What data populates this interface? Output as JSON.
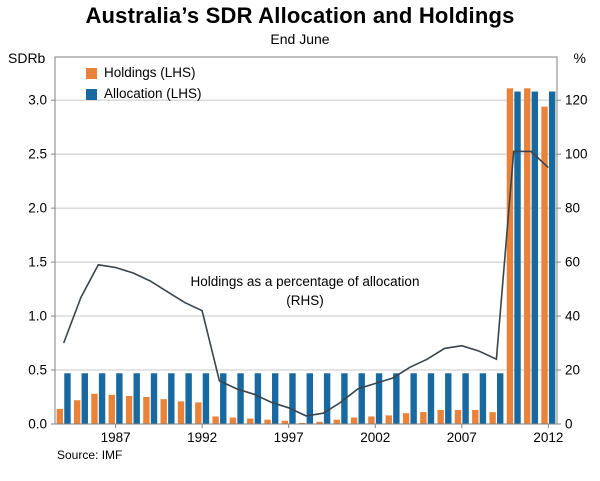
{
  "title": "Australia’s SDR Allocation and Holdings",
  "subtitle": "End June",
  "axes": {
    "left_unit": "SDRb",
    "right_unit": "%"
  },
  "legend": [
    {
      "label": "Holdings (LHS)",
      "color": "#EA8339"
    },
    {
      "label": "Allocation (LHS)",
      "color": "#17699F"
    }
  ],
  "annotation": {
    "line1": "Holdings as a percentage of allocation",
    "line2": "(RHS)"
  },
  "source": "Source: IMF",
  "chart_data": {
    "type": "bar+line",
    "title": "Australia’s SDR Allocation and Holdings",
    "subtitle": "End June",
    "years": [
      1984,
      1985,
      1986,
      1987,
      1988,
      1989,
      1990,
      1991,
      1992,
      1993,
      1994,
      1995,
      1996,
      1997,
      1998,
      1999,
      2000,
      2001,
      2002,
      2003,
      2004,
      2005,
      2006,
      2007,
      2008,
      2009,
      2010,
      2011,
      2012
    ],
    "series": [
      {
        "name": "Holdings (LHS)",
        "type": "bar",
        "axis": "left",
        "color": "#EA8339",
        "values": [
          0.14,
          0.22,
          0.28,
          0.27,
          0.26,
          0.25,
          0.23,
          0.21,
          0.2,
          0.07,
          0.06,
          0.05,
          0.04,
          0.03,
          0.01,
          0.02,
          0.04,
          0.06,
          0.07,
          0.08,
          0.1,
          0.11,
          0.13,
          0.13,
          0.13,
          0.11,
          3.11,
          3.11,
          2.94
        ]
      },
      {
        "name": "Allocation (LHS)",
        "type": "bar",
        "axis": "left",
        "color": "#17699F",
        "values": [
          0.47,
          0.47,
          0.47,
          0.47,
          0.47,
          0.47,
          0.47,
          0.47,
          0.47,
          0.47,
          0.47,
          0.47,
          0.47,
          0.47,
          0.47,
          0.47,
          0.47,
          0.47,
          0.47,
          0.47,
          0.47,
          0.47,
          0.47,
          0.47,
          0.47,
          0.47,
          3.08,
          3.08,
          3.08
        ]
      },
      {
        "name": "Holdings as a percentage of allocation (RHS)",
        "type": "line",
        "axis": "right",
        "color": "#39444C",
        "values": [
          30,
          47,
          59,
          58,
          56,
          53,
          49,
          45,
          42,
          16,
          13,
          11,
          8,
          6,
          3,
          4,
          8,
          13,
          15,
          17,
          21,
          24,
          28,
          29,
          27,
          24,
          101,
          101,
          95
        ]
      }
    ],
    "left_axis": {
      "unit": "SDRb",
      "min": 0,
      "max": 3.4,
      "ticks": [
        0,
        0.5,
        1.0,
        1.5,
        2.0,
        2.5,
        3.0
      ]
    },
    "right_axis": {
      "unit": "%",
      "min": 0,
      "max": 136,
      "ticks": [
        0,
        20,
        40,
        60,
        80,
        100,
        120
      ]
    },
    "x_tick_years": [
      1987,
      1992,
      1997,
      2002,
      2007,
      2012
    ],
    "grid": "horizontal",
    "legend_position": "top-left"
  }
}
